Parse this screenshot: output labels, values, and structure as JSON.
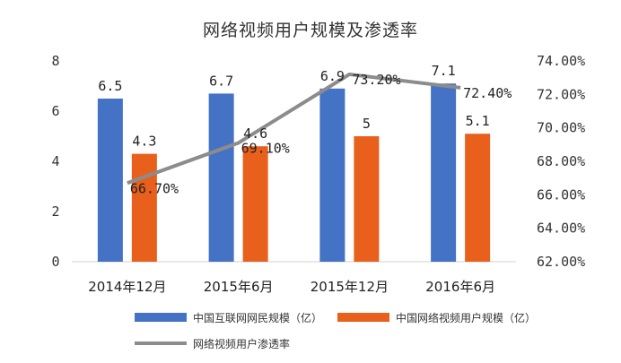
{
  "chart_data": {
    "type": "bar",
    "title": "网络视频用户规模及渗透率",
    "categories": [
      "2014年12月",
      "2015年6月",
      "2015年12月",
      "2016年6月"
    ],
    "series": [
      {
        "name": "中国互联网网民规模（亿）",
        "type": "bar",
        "axis": "left",
        "color": "#4472C4",
        "values": [
          6.5,
          6.7,
          6.9,
          7.1
        ],
        "labels": [
          "6.5",
          "6.7",
          "6.9",
          "7.1"
        ]
      },
      {
        "name": "中国网络视频用户规模（亿）",
        "type": "bar",
        "axis": "left",
        "color": "#E8601C",
        "values": [
          4.3,
          4.6,
          5,
          5.1
        ],
        "labels": [
          "4.3",
          "4.6",
          "5",
          "5.1"
        ]
      },
      {
        "name": "网络视频用户渗透率",
        "type": "line",
        "axis": "right",
        "color": "#8C8C8C",
        "values": [
          66.7,
          69.1,
          73.2,
          72.4
        ],
        "labels": [
          "66.70%",
          "69.10%",
          "73.20%",
          "72.40%"
        ]
      }
    ],
    "y_left": {
      "min": 0,
      "max": 8,
      "ticks": [
        "0",
        "2",
        "4",
        "6",
        "8"
      ]
    },
    "y_right": {
      "min": 62,
      "max": 74,
      "ticks": [
        "62.00%",
        "64.00%",
        "66.00%",
        "68.00%",
        "70.00%",
        "72.00%",
        "74.00%"
      ]
    },
    "grid": false,
    "legend_position": "bottom-left"
  }
}
